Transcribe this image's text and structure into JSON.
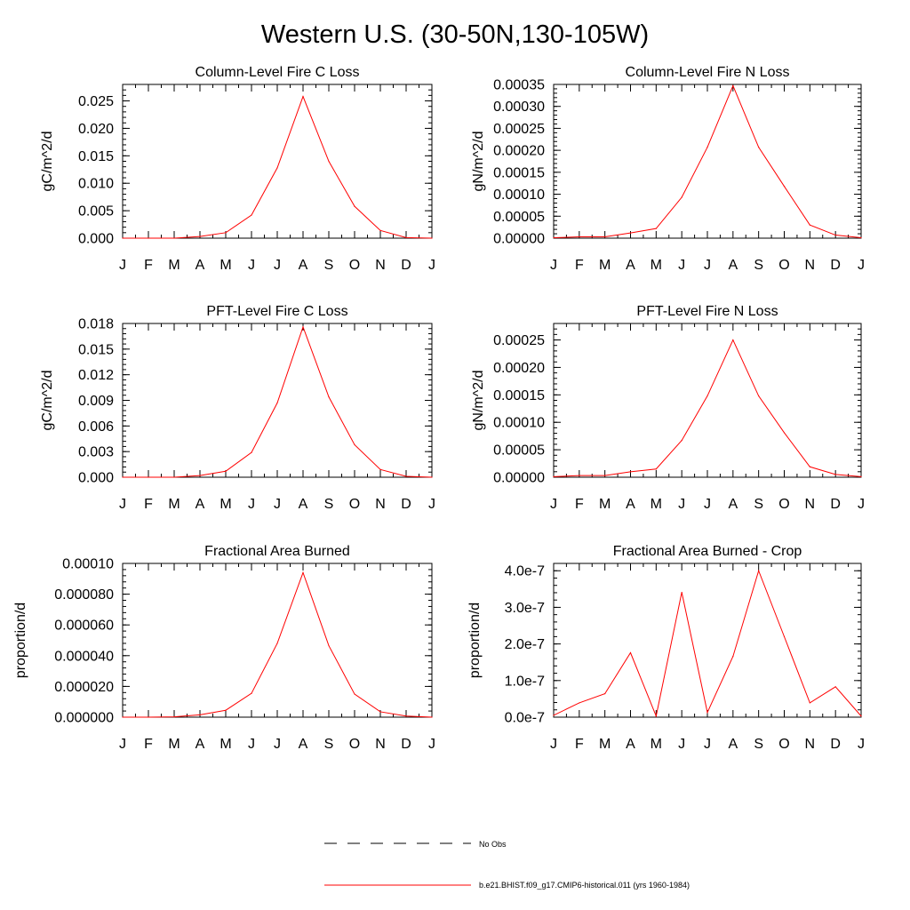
{
  "figure": {
    "title": "Western U.S. (30-50N,130-105W)"
  },
  "months": [
    "J",
    "F",
    "M",
    "A",
    "M",
    "J",
    "J",
    "A",
    "S",
    "O",
    "N",
    "D",
    "J"
  ],
  "series_color": "#ff0000",
  "legend": {
    "entries": [
      {
        "label": "No Obs",
        "style": "dashed",
        "color": "#000000"
      },
      {
        "label": "b.e21.BHIST.f09_g17.CMIP6-historical.011 (yrs 1960-1984)",
        "style": "solid",
        "color": "#ff0000"
      }
    ]
  },
  "chart_data": [
    {
      "type": "line",
      "title": "Column-Level Fire C Loss",
      "ylabel": "gC/m^2/d",
      "ylim": [
        0,
        0.028
      ],
      "yticks": [
        0,
        0.005,
        0.01,
        0.015,
        0.02,
        0.025
      ],
      "ytick_labels": [
        "0.000",
        "0.005",
        "0.010",
        "0.015",
        "0.020",
        "0.025"
      ],
      "x": [
        "J",
        "F",
        "M",
        "A",
        "M",
        "J",
        "J",
        "A",
        "S",
        "O",
        "N",
        "D",
        "J"
      ],
      "values": [
        0.0,
        0.0,
        0.0,
        0.0003,
        0.001,
        0.0042,
        0.0128,
        0.0258,
        0.014,
        0.0058,
        0.0014,
        0.0001,
        0.0
      ]
    },
    {
      "type": "line",
      "title": "Column-Level Fire N Loss",
      "ylabel": "gN/m^2/d",
      "ylim": [
        0,
        0.00035
      ],
      "yticks": [
        0,
        5e-05,
        0.0001,
        0.00015,
        0.0002,
        0.00025,
        0.0003,
        0.00035
      ],
      "ytick_labels": [
        "0.00000",
        "0.00005",
        "0.00010",
        "0.00015",
        "0.00020",
        "0.00025",
        "0.00030",
        "0.00035"
      ],
      "x": [
        "J",
        "F",
        "M",
        "A",
        "M",
        "J",
        "J",
        "A",
        "S",
        "O",
        "N",
        "D",
        "J"
      ],
      "values": [
        1e-06,
        3e-06,
        3e-06,
        1.2e-05,
        2.2e-05,
        9.3e-05,
        0.000207,
        0.000347,
        0.000207,
        0.000118,
        3e-05,
        7e-06,
        1e-06
      ]
    },
    {
      "type": "line",
      "title": "PFT-Level Fire C Loss",
      "ylabel": "gC/m^2/d",
      "ylim": [
        0,
        0.018
      ],
      "yticks": [
        0,
        0.003,
        0.006,
        0.009,
        0.012,
        0.015,
        0.018
      ],
      "ytick_labels": [
        "0.000",
        "0.003",
        "0.006",
        "0.009",
        "0.012",
        "0.015",
        "0.018"
      ],
      "x": [
        "J",
        "F",
        "M",
        "A",
        "M",
        "J",
        "J",
        "A",
        "S",
        "O",
        "N",
        "D",
        "J"
      ],
      "values": [
        0.0,
        0.0,
        0.0,
        0.0002,
        0.0007,
        0.0029,
        0.0087,
        0.0176,
        0.0094,
        0.0038,
        0.0009,
        0.0001,
        0.0
      ]
    },
    {
      "type": "line",
      "title": "PFT-Level Fire N Loss",
      "ylabel": "gN/m^2/d",
      "ylim": [
        0,
        0.00028
      ],
      "yticks": [
        0,
        5e-05,
        0.0001,
        0.00015,
        0.0002,
        0.00025
      ],
      "ytick_labels": [
        "0.00000",
        "0.00005",
        "0.00010",
        "0.00015",
        "0.00020",
        "0.00025"
      ],
      "x": [
        "J",
        "F",
        "M",
        "A",
        "M",
        "J",
        "J",
        "A",
        "S",
        "O",
        "N",
        "D",
        "J"
      ],
      "values": [
        1e-06,
        3e-06,
        3e-06,
        1e-05,
        1.5e-05,
        6.7e-05,
        0.000148,
        0.00025,
        0.000148,
        8.1e-05,
        1.9e-05,
        5e-06,
        1e-06
      ]
    },
    {
      "type": "line",
      "title": "Fractional Area Burned",
      "ylabel": "proportion/d",
      "ylim": [
        0,
        0.0001
      ],
      "yticks": [
        0,
        2e-05,
        4e-05,
        6e-05,
        8e-05,
        0.0001
      ],
      "ytick_labels": [
        "0.000000",
        "0.000020",
        "0.000040",
        "0.000060",
        "0.000080",
        "0.00010"
      ],
      "x": [
        "J",
        "F",
        "M",
        "A",
        "M",
        "J",
        "J",
        "A",
        "S",
        "O",
        "N",
        "D",
        "J"
      ],
      "values": [
        0.0,
        0.0,
        2e-07,
        1.5e-06,
        4.5e-06,
        1.55e-05,
        4.8e-05,
        9.4e-05,
        4.65e-05,
        1.5e-05,
        3.5e-06,
        7e-07,
        0.0
      ]
    },
    {
      "type": "line",
      "title": "Fractional Area Burned - Crop",
      "ylabel": "proportion/d",
      "ylim": [
        0,
        4.2e-07
      ],
      "yticks": [
        0,
        1e-07,
        2e-07,
        3e-07,
        4e-07
      ],
      "ytick_labels": [
        "0.0e-7",
        "1.0e-7",
        "2.0e-7",
        "3.0e-7",
        "4.0e-7"
      ],
      "x": [
        "J",
        "F",
        "M",
        "A",
        "M",
        "J",
        "J",
        "A",
        "S",
        "O",
        "N",
        "D",
        "J"
      ],
      "values": [
        5e-09,
        3.9e-08,
        6.4e-08,
        1.76e-07,
        3e-09,
        3.41e-07,
        1.3e-08,
        1.66e-07,
        4e-07,
        2.2e-07,
        3.9e-08,
        8.3e-08,
        3e-09
      ]
    }
  ]
}
